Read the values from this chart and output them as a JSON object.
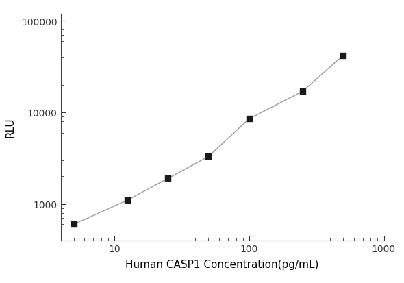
{
  "x_values": [
    5,
    12.5,
    25,
    50,
    100,
    250,
    500
  ],
  "y_values": [
    600,
    1100,
    1900,
    3300,
    8500,
    17000,
    42000
  ],
  "xlabel": "Human CASP1 Concentration(pg/mL)",
  "ylabel": "RLU",
  "xlim": [
    4,
    1000
  ],
  "ylim": [
    400,
    120000
  ],
  "x_ticks": [
    10,
    100,
    1000
  ],
  "y_ticks": [
    1000,
    10000,
    100000
  ],
  "line_color": "#999999",
  "marker_color": "#1a1a1a",
  "marker_size": 6,
  "line_width": 1.0,
  "background_color": "#ffffff",
  "xlabel_fontsize": 11,
  "ylabel_fontsize": 11,
  "tick_labelsize": 10
}
